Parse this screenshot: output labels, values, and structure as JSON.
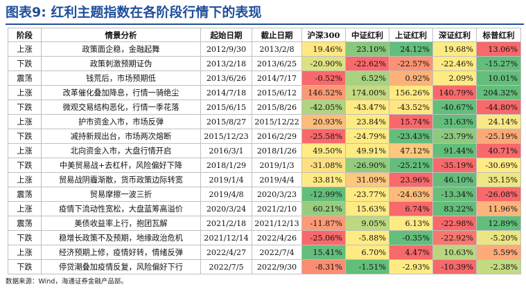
{
  "title": "图表9: 红利主题指数在各阶段行情下的表现",
  "footer": "数据来源：Wind，海通证券金融产品部。",
  "columns": [
    "阶段",
    "情景分析",
    "起始日期",
    "截止日期",
    "沪深300",
    "中证红利",
    "上证红利",
    "深证红利",
    "标普红利"
  ],
  "rows": [
    {
      "phase": "上涨",
      "scenario": "政策面企稳，金融起舞",
      "start": "2012/9/30",
      "end": "2013/2/8",
      "values": [
        "19.46%",
        "23.10%",
        "24.12%",
        "19.68%",
        "13.06%"
      ]
    },
    {
      "phase": "下跌",
      "scenario": "政策刺激预期证伪",
      "start": "2013/2/18",
      "end": "2013/6/25",
      "values": [
        "-20.90%",
        "-22.62%",
        "-22.57%",
        "-22.46%",
        "-15.27%"
      ]
    },
    {
      "phase": "震荡",
      "scenario": "钱荒后，市场预期低",
      "start": "2013/6/26",
      "end": "2014/7/17",
      "values": [
        "-0.52%",
        "6.52%",
        "0.92%",
        "2.09%",
        "10.01%"
      ]
    },
    {
      "phase": "上涨",
      "scenario": "改革催化叠加降息，行情一骑绝尘",
      "start": "2014/7/18",
      "end": "2015/6/12",
      "values": [
        "146.52%",
        "174.00%",
        "156.26%",
        "140.79%",
        "204.32%"
      ]
    },
    {
      "phase": "下跌",
      "scenario": "微观交易结构恶化，行情一季花落",
      "start": "2015/6/15",
      "end": "2015/8/26",
      "values": [
        "-42.05%",
        "-43.47%",
        "-43.52%",
        "-40.67%",
        "-44.80%"
      ]
    },
    {
      "phase": "上涨",
      "scenario": "护市资金入市，市场反弹",
      "start": "2015/8/27",
      "end": "2015/12/22",
      "values": [
        "20.93%",
        "23.84%",
        "15.74%",
        "31.63%",
        "24.14%"
      ]
    },
    {
      "phase": "下跌",
      "scenario": "减持新规出台，市场两次熔断",
      "start": "2015/12/23",
      "end": "2016/2/29",
      "values": [
        "-25.58%",
        "-24.79%",
        "-23.43%",
        "-23.79%",
        "-25.19%"
      ]
    },
    {
      "phase": "上涨",
      "scenario": "北向资金入市，大盘行情开启",
      "start": "2016/3/1",
      "end": "2018/1/26",
      "values": [
        "49.50%",
        "49.91%",
        "47.12%",
        "91.44%",
        "40.71%"
      ]
    },
    {
      "phase": "下跌",
      "scenario": "中美贸易战+去杠杆，风险偏好下降",
      "start": "2018/1/29",
      "end": "2019/1/3",
      "values": [
        "-31.08%",
        "-26.90%",
        "-25.21%",
        "-35.19%",
        "-30.69%"
      ]
    },
    {
      "phase": "上涨",
      "scenario": "贸易战阴霾渐散，货币政策边际转宽",
      "start": "2019/1/4",
      "end": "2019/4/4",
      "values": [
        "33.81%",
        "31.09%",
        "23.96%",
        "46.10%",
        "35.15%"
      ]
    },
    {
      "phase": "震荡",
      "scenario": "贸易摩擦一波三折",
      "start": "2019/4/8",
      "end": "2020/3/23",
      "values": [
        "-12.99%",
        "-23.77%",
        "-24.63%",
        "-13.34%",
        "-26.08%"
      ]
    },
    {
      "phase": "上涨",
      "scenario": "疫情下流动性宽松，大盘蓝筹高溢价",
      "start": "2020/3/24",
      "end": "2021/2/10",
      "values": [
        "60.21%",
        "15.63%",
        "6.74%",
        "83.22%",
        "11.96%"
      ]
    },
    {
      "phase": "震荡",
      "scenario": "美债收益率上行，抱团瓦解",
      "start": "2021/2/18",
      "end": "2021/12/13",
      "values": [
        "-11.87%",
        "9.05%",
        "6.13%",
        "-22.98%",
        "12.89%"
      ]
    },
    {
      "phase": "下跌",
      "scenario": "稳增长政策不及预期，地缘政治危机",
      "start": "2021/12/14",
      "end": "2022/4/26",
      "values": [
        "-25.06%",
        "-5.88%",
        "-0.35%",
        "-22.92%",
        "-5.20%"
      ]
    },
    {
      "phase": "上涨",
      "scenario": "经济预期上修，疫情好转，情绪反弹",
      "start": "2022/4/27",
      "end": "2022/7/4",
      "values": [
        "15.41%",
        "6.70%",
        "4.47%",
        "10.63%",
        "5.59%"
      ]
    },
    {
      "phase": "下跌",
      "scenario": "停贷潮叠加疫情反复，风险偏好下行",
      "start": "2022/7/5",
      "end": "2022/9/30",
      "values": [
        "-8.31%",
        "-1.51%",
        "-2.93%",
        "-10.39%",
        "-2.38%"
      ]
    }
  ],
  "colors": {
    "title": "#1f4e9a",
    "grid": "#bfbfbf",
    "scale_low": "#f8696b",
    "scale_mid": "#ffeb84",
    "scale_high": "#63be7b"
  }
}
